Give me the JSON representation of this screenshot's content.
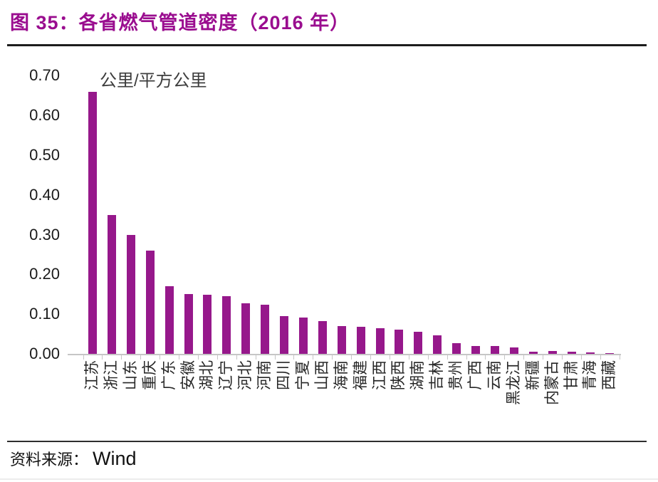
{
  "figure": {
    "title": "图 35：各省燃气管道密度（2016 年）",
    "title_color": "#9A0D8F",
    "bar_color": "#96188B",
    "source_label": "资料来源：",
    "source_value": "Wind"
  },
  "chart_data": {
    "type": "bar",
    "title": "各省燃气管道密度（2016年）",
    "unit_label": "公里/平方公里",
    "xlabel": "",
    "ylabel": "公里/平方公里",
    "ylim": [
      0,
      0.7
    ],
    "yticks": [
      "0.00",
      "0.10",
      "0.20",
      "0.30",
      "0.40",
      "0.50",
      "0.60",
      "0.70"
    ],
    "grid": false,
    "legend_position": "none",
    "categories": [
      "江苏",
      "浙江",
      "山东",
      "重庆",
      "广东",
      "安徽",
      "湖北",
      "辽宁",
      "河北",
      "河南",
      "四川",
      "宁夏",
      "山西",
      "海南",
      "福建",
      "江西",
      "陕西",
      "湖南",
      "吉林",
      "贵州",
      "广西",
      "云南",
      "黑龙江",
      "新疆",
      "内蒙古",
      "甘肃",
      "青海",
      "西藏"
    ],
    "values": [
      0.66,
      0.35,
      0.3,
      0.26,
      0.17,
      0.15,
      0.148,
      0.145,
      0.127,
      0.124,
      0.095,
      0.092,
      0.083,
      0.07,
      0.068,
      0.065,
      0.061,
      0.056,
      0.047,
      0.027,
      0.02,
      0.02,
      0.016,
      0.006,
      0.007,
      0.005,
      0.004,
      0.002
    ]
  }
}
